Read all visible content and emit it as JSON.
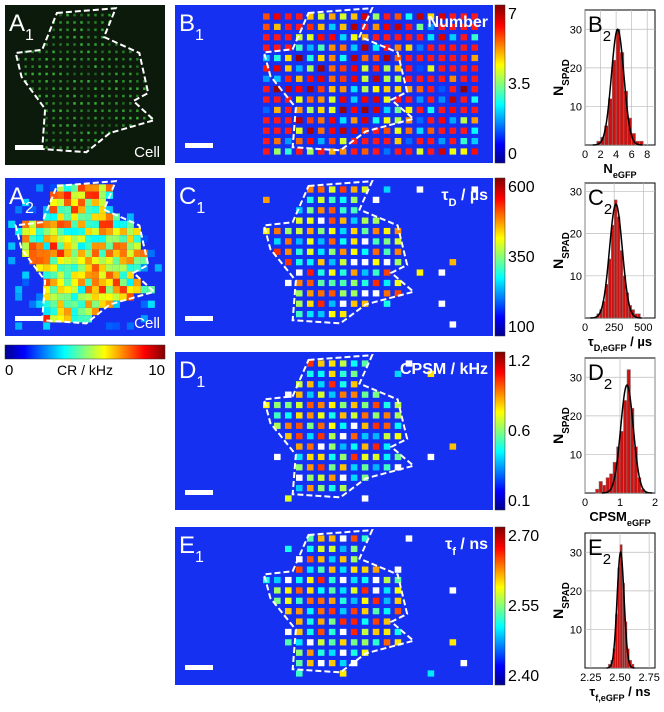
{
  "maps": [
    {
      "letter": "A",
      "sub": "1",
      "caption": [
        "Cell"
      ]
    },
    {
      "letter": "A",
      "sub": "2",
      "caption": [
        "Cell"
      ]
    },
    {
      "letter": "B",
      "sub": "1",
      "caption": [
        "Number"
      ],
      "ticks": [
        "7",
        "3.5",
        "0"
      ]
    },
    {
      "letter": "C",
      "sub": "1",
      "caption": [
        "τ",
        "D",
        " / µs"
      ],
      "ticks": [
        "600",
        "350",
        "100"
      ]
    },
    {
      "letter": "D",
      "sub": "1",
      "caption": [
        "CPSM / kHz"
      ],
      "ticks": [
        "1.2",
        "0.6",
        "0.1"
      ]
    },
    {
      "letter": "E",
      "sub": "1",
      "caption": [
        "τ",
        "f",
        " / ns"
      ],
      "ticks": [
        "2.70",
        "2.55",
        "2.40"
      ]
    }
  ],
  "cr_scale": {
    "min": "0",
    "label": "CR / kHz",
    "max": "10"
  },
  "chart_data": [
    {
      "type": "histogram",
      "letter": "B",
      "sub": "2",
      "xlabel": [
        "N",
        "eGFP"
      ],
      "ylabel": [
        "N",
        "SPAD"
      ],
      "bins": [
        1.5,
        2,
        2.5,
        3,
        3.5,
        4,
        4.5,
        5,
        5.5,
        6,
        6.5,
        7,
        7.5
      ],
      "values": [
        1,
        2,
        5,
        12,
        22,
        30,
        24,
        14,
        7,
        3,
        1,
        1
      ],
      "color": "#cc1111",
      "fit": {
        "mean": 4.2,
        "sd": 0.8,
        "peak": 30
      },
      "xlim": [
        0,
        9
      ],
      "ylim": [
        0,
        35
      ],
      "xticks": [
        0,
        2,
        4,
        6,
        8
      ],
      "yticks": [
        10,
        20,
        30
      ],
      "grid": true
    },
    {
      "type": "histogram",
      "letter": "C",
      "sub": "2",
      "xlabel": [
        "τ",
        "D,eGFP",
        " / µs"
      ],
      "ylabel": [
        "N",
        "SPAD"
      ],
      "bins": [
        100,
        125,
        150,
        175,
        200,
        225,
        250,
        275,
        300,
        325,
        350,
        375,
        400,
        425,
        450,
        475,
        500
      ],
      "values": [
        1,
        2,
        4,
        8,
        14,
        22,
        28,
        24,
        16,
        10,
        6,
        3,
        2,
        1,
        1,
        0
      ],
      "color": "#cc1111",
      "fit": {
        "mean": 265,
        "sd": 55,
        "peak": 27
      },
      "xlim": [
        0,
        600
      ],
      "ylim": [
        0,
        32
      ],
      "xticks": [
        0,
        250,
        500
      ],
      "yticks": [
        10,
        20,
        30
      ],
      "grid": true
    },
    {
      "type": "histogram",
      "letter": "D",
      "sub": "2",
      "xlabel": [
        "CPSM",
        "eGFP"
      ],
      "ylabel": [
        "N",
        "SPAD"
      ],
      "bins": [
        0.3,
        0.4,
        0.5,
        0.6,
        0.7,
        0.8,
        0.9,
        1.0,
        1.1,
        1.2,
        1.3,
        1.4,
        1.5,
        1.6,
        1.7
      ],
      "values": [
        1,
        3,
        2,
        4,
        5,
        8,
        12,
        16,
        24,
        32,
        22,
        12,
        4,
        1
      ],
      "color": "#cc1111",
      "fit": {
        "mean": 1.2,
        "sd": 0.18,
        "peak": 28
      },
      "xlim": [
        0,
        2
      ],
      "ylim": [
        0,
        35
      ],
      "xticks": [
        0,
        1,
        2
      ],
      "yticks": [
        10,
        20,
        30
      ],
      "grid": true
    },
    {
      "type": "histogram",
      "letter": "E",
      "sub": "2",
      "xlabel": [
        "τ",
        "f,eGFP",
        " / ns"
      ],
      "ylabel": [
        "N",
        "SPAD"
      ],
      "bins": [
        2.4,
        2.42,
        2.44,
        2.46,
        2.48,
        2.5,
        2.52,
        2.54,
        2.56,
        2.58,
        2.6,
        2.62
      ],
      "values": [
        1,
        2,
        5,
        14,
        26,
        32,
        22,
        12,
        5,
        2,
        1
      ],
      "color": "#cc1111",
      "fit": {
        "mean": 2.505,
        "sd": 0.03,
        "peak": 30
      },
      "xlim": [
        2.2,
        2.8
      ],
      "ylim": [
        0,
        35
      ],
      "xticks": [
        2.25,
        {
          "value": 2.5,
          "label": "2.50"
        },
        2.75
      ],
      "yticks": [
        10,
        20,
        30
      ],
      "grid": true
    }
  ]
}
